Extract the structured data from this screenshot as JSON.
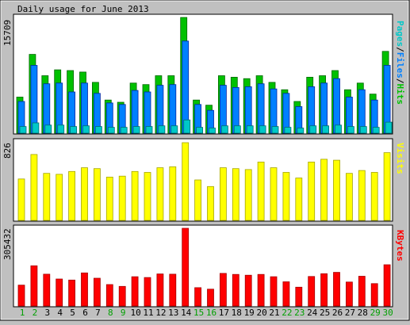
{
  "chart_data": {
    "type": "bar",
    "title": "Daily usage for June 2013",
    "categories": [
      "1",
      "2",
      "3",
      "4",
      "5",
      "6",
      "7",
      "8",
      "9",
      "10",
      "11",
      "12",
      "13",
      "14",
      "15",
      "16",
      "17",
      "18",
      "19",
      "20",
      "21",
      "22",
      "23",
      "24",
      "25",
      "26",
      "27",
      "28",
      "29",
      "30"
    ],
    "weekend_days": [
      "1",
      "2",
      "8",
      "9",
      "15",
      "16",
      "22",
      "23",
      "29",
      "30"
    ],
    "panels": [
      {
        "name": "hits-files-pages",
        "ymax": 15709,
        "max_label": "15709",
        "right_label_parts": [
          {
            "text": "Pages",
            "color": "#00c8c8"
          },
          {
            "text": "/",
            "color": "#000000"
          },
          {
            "text": "Files",
            "color": "#0080ff"
          },
          {
            "text": "/",
            "color": "#000000"
          },
          {
            "text": "Hits",
            "color": "#00c000"
          }
        ],
        "series": [
          {
            "name": "Hits",
            "color": "#00c000",
            "values": [
              4900,
              10700,
              7800,
              8600,
              8500,
              8300,
              6900,
              4500,
              4200,
              6800,
              6600,
              7800,
              7800,
              15709,
              4500,
              3800,
              7800,
              7600,
              7400,
              7800,
              6900,
              5900,
              4300,
              7600,
              7800,
              8500,
              5900,
              6800,
              5300,
              11100
            ]
          },
          {
            "name": "Files",
            "color": "#0080ff",
            "values": [
              4300,
              9200,
              6700,
              6800,
              5600,
              6800,
              5400,
              4100,
              3900,
              5800,
              5600,
              6500,
              6600,
              12500,
              3900,
              3100,
              6500,
              6200,
              6300,
              6700,
              6000,
              5400,
              3600,
              6300,
              6800,
              7400,
              4900,
              5900,
              4500,
              9200
            ]
          },
          {
            "name": "Pages",
            "color": "#00c8c8",
            "values": [
              900,
              1400,
              1100,
              1100,
              900,
              1000,
              900,
              800,
              800,
              900,
              900,
              1000,
              1000,
              1800,
              800,
              700,
              1000,
              1000,
              1000,
              1000,
              900,
              800,
              700,
              1000,
              1000,
              1100,
              900,
              900,
              800,
              1500
            ]
          }
        ]
      },
      {
        "name": "visits",
        "ymax": 826,
        "max_label": "826",
        "right_label_parts": [
          {
            "text": "Visits",
            "color": "#ffff00"
          }
        ],
        "series": [
          {
            "name": "Visits",
            "color": "#ffff00",
            "values": [
              440,
              700,
              500,
              490,
              520,
              560,
              550,
              460,
              470,
              520,
              510,
              560,
              570,
              826,
              430,
              360,
              560,
              550,
              540,
              620,
              560,
              510,
              450,
              620,
              650,
              640,
              500,
              530,
              510,
              720
            ]
          }
        ]
      },
      {
        "name": "kbytes",
        "ymax": 305432,
        "max_label": "305432",
        "right_label_parts": [
          {
            "text": "KBytes",
            "color": "#ff0000"
          }
        ],
        "series": [
          {
            "name": "KBytes",
            "color": "#ff0000",
            "values": [
              82000,
              158000,
              125000,
              106000,
              102000,
              130000,
              109000,
              84000,
              77000,
              115000,
              112000,
              126000,
              125000,
              305432,
              72000,
              66000,
              128000,
              124000,
              121000,
              124000,
              115000,
              95000,
              74000,
              116000,
              127000,
              132000,
              94000,
              117000,
              88000,
              162000
            ]
          }
        ]
      }
    ]
  },
  "colors": {
    "background": "#c0c0c0",
    "plot_area": "#ffffff",
    "weekday_label": "#000000",
    "weekend_label": "#00a000"
  }
}
